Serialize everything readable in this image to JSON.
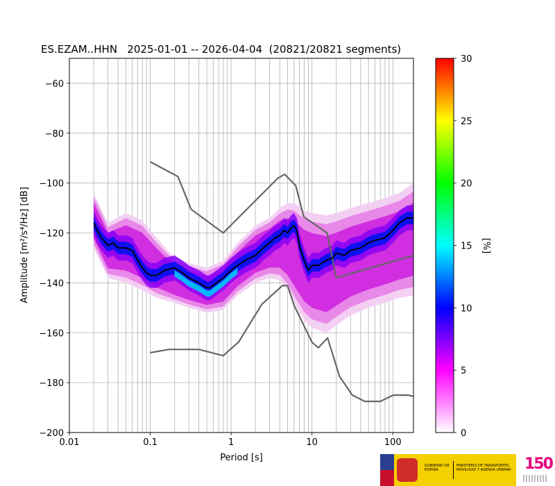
{
  "chart_data": {
    "type": "heatmap",
    "title": "ES.EZAM..HHN   2025-01-01 -- 2026-04-04  (20821/20821 segments)",
    "xlabel": "Period [s]",
    "ylabel": "Amplitude [m²/s⁴/Hz] [dB]",
    "xscale": "log",
    "xlim": [
      0.01,
      180
    ],
    "ylim": [
      -200,
      -50
    ],
    "xticks": [
      0.01,
      0.1,
      1,
      10,
      100
    ],
    "xtick_labels": [
      "0.01",
      "0.1",
      "1",
      "10",
      "100"
    ],
    "yticks": [
      -200,
      -180,
      -160,
      -140,
      -120,
      -100,
      -80,
      -60
    ],
    "ytick_labels": [
      "−200",
      "−180",
      "−160",
      "−140",
      "−120",
      "−100",
      "−80",
      "−60"
    ],
    "grid": true,
    "colorbar": {
      "label": "[%]",
      "range": [
        0,
        30
      ],
      "ticks": [
        0,
        5,
        10,
        15,
        20,
        25,
        30
      ],
      "tick_labels": [
        "0",
        "5",
        "10",
        "15",
        "20",
        "25",
        "30"
      ],
      "colormap": [
        "#ffffff",
        "#ff00ff",
        "#0000ff",
        "#00ffff",
        "#00ff00",
        "#ffff00",
        "#ff0000"
      ]
    },
    "mode_line": {
      "name": "mode",
      "color": "#000000",
      "period": [
        0.02,
        0.022,
        0.025,
        0.03,
        0.035,
        0.04,
        0.05,
        0.06,
        0.07,
        0.08,
        0.09,
        0.1,
        0.12,
        0.15,
        0.2,
        0.25,
        0.3,
        0.4,
        0.5,
        0.55,
        0.6,
        0.8,
        1,
        1.2,
        1.5,
        2,
        2.5,
        3,
        3.5,
        4,
        4.5,
        5,
        5.5,
        6,
        6.5,
        7,
        8,
        9,
        10,
        12,
        15,
        18,
        20,
        25,
        30,
        40,
        50,
        60,
        80,
        100,
        120,
        150,
        180
      ],
      "db": [
        -116,
        -119,
        -122,
        -125,
        -124,
        -126,
        -126,
        -127,
        -131,
        -134,
        -136,
        -137,
        -137,
        -135,
        -134,
        -136,
        -138,
        -140,
        -142,
        -142,
        -141,
        -138,
        -135,
        -133,
        -131,
        -129,
        -126,
        -124,
        -122,
        -121,
        -119,
        -120,
        -118,
        -117,
        -119,
        -125,
        -131,
        -135,
        -133,
        -133,
        -131,
        -130,
        -128,
        -129,
        -127,
        -126,
        -124,
        -123,
        -122,
        -119,
        -116,
        -114,
        -114
      ]
    },
    "reference_curves": [
      {
        "name": "nhnm",
        "color": "#666666",
        "period": [
          0.1,
          0.22,
          0.32,
          0.8,
          3.8,
          4.6,
          6.3,
          7.9,
          15.4,
          20
        ],
        "db": [
          -91.5,
          -97.4,
          -110.5,
          -120,
          -98,
          -96.5,
          -101,
          -113.5,
          -120,
          -138
        ]
      },
      {
        "name": "nhnm-longperiod",
        "color": "#666666",
        "period": [
          20,
          180
        ],
        "db": [
          -138,
          -129
        ]
      },
      {
        "name": "nlnm",
        "color": "#666666",
        "period": [
          0.1,
          0.17,
          0.4,
          0.8,
          1.24,
          2.4,
          4.3,
          5,
          6,
          10,
          12,
          15.6,
          21.9,
          31.6,
          45,
          70,
          101,
          154,
          180
        ],
        "db": [
          -168,
          -166.7,
          -166.7,
          -169.2,
          -163.7,
          -148.6,
          -141.1,
          -141.1,
          -149,
          -163.8,
          -166,
          -162.1,
          -177.5,
          -185,
          -187.5,
          -187.5,
          -185,
          -185,
          -185.5
        ]
      }
    ],
    "density_band": {
      "period": [
        0.02,
        0.03,
        0.05,
        0.08,
        0.12,
        0.2,
        0.3,
        0.5,
        0.8,
        1.2,
        2,
        3,
        4,
        5,
        6,
        8,
        10,
        15,
        20,
        30,
        50,
        80,
        120,
        180
      ],
      "outer_top_db": [
        -104,
        -116,
        -112,
        -115,
        -122,
        -130,
        -132,
        -134,
        -131,
        -124,
        -117,
        -114,
        -110,
        -108,
        -108,
        -111,
        -112,
        -113,
        -112,
        -110,
        -108,
        -106,
        -104,
        -100
      ],
      "outer_bottom_db": [
        -126,
        -138,
        -140,
        -143,
        -146,
        -148,
        -150,
        -152,
        -151,
        -145,
        -140,
        -138,
        -139,
        -143,
        -148,
        -155,
        -158,
        -160,
        -157,
        -153,
        -150,
        -148,
        -146,
        -145
      ]
    }
  },
  "logos": {
    "gov_line": "GOBIERNO DE ESPAÑA",
    "ministry_line": "MINISTERIO DE TRANSPORTES, MOVILIDAD Y AGENDA URBANA",
    "anniversary": "150"
  }
}
